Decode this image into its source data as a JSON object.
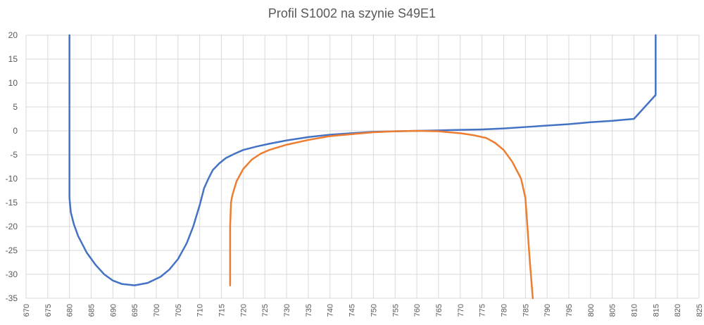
{
  "chart_data": {
    "type": "line",
    "title": "Profil S1002 na szynie S49E1",
    "xlabel": "",
    "ylabel": "",
    "xlim": [
      670,
      825
    ],
    "ylim": [
      -35,
      20
    ],
    "x_ticks": [
      670,
      675,
      680,
      685,
      690,
      695,
      700,
      705,
      710,
      715,
      720,
      725,
      730,
      735,
      740,
      745,
      750,
      755,
      760,
      765,
      770,
      775,
      780,
      785,
      790,
      795,
      800,
      805,
      810,
      815,
      820,
      825
    ],
    "y_ticks": [
      20,
      15,
      10,
      5,
      0,
      -5,
      -10,
      -15,
      -20,
      -25,
      -30,
      -35
    ],
    "grid": true,
    "legend": "none",
    "series": [
      {
        "color": "#4472C4",
        "points": [
          [
            680,
            20
          ],
          [
            680,
            5
          ],
          [
            680,
            -5
          ],
          [
            680,
            -14
          ],
          [
            680.3,
            -17
          ],
          [
            681,
            -19.5
          ],
          [
            682,
            -22
          ],
          [
            684,
            -25.5
          ],
          [
            686,
            -28
          ],
          [
            688,
            -30
          ],
          [
            690,
            -31.3
          ],
          [
            692,
            -32
          ],
          [
            695,
            -32.3
          ],
          [
            698,
            -31.8
          ],
          [
            701,
            -30.5
          ],
          [
            703,
            -29
          ],
          [
            705,
            -26.8
          ],
          [
            707,
            -23.5
          ],
          [
            708.5,
            -20
          ],
          [
            710,
            -15.5
          ],
          [
            711,
            -12
          ],
          [
            712,
            -10
          ],
          [
            713,
            -8.2
          ],
          [
            714.5,
            -6.8
          ],
          [
            716,
            -5.7
          ],
          [
            718,
            -4.8
          ],
          [
            720,
            -4
          ],
          [
            723,
            -3.3
          ],
          [
            726,
            -2.7
          ],
          [
            730,
            -2
          ],
          [
            735,
            -1.3
          ],
          [
            740,
            -0.8
          ],
          [
            745,
            -0.5
          ],
          [
            750,
            -0.2
          ],
          [
            755,
            -0.1
          ],
          [
            760,
            0
          ],
          [
            765,
            0.1
          ],
          [
            770,
            0.2
          ],
          [
            775,
            0.3
          ],
          [
            780,
            0.5
          ],
          [
            785,
            0.8
          ],
          [
            790,
            1.1
          ],
          [
            795,
            1.4
          ],
          [
            800,
            1.8
          ],
          [
            805,
            2.1
          ],
          [
            810,
            2.5
          ],
          [
            815,
            7.5
          ],
          [
            815,
            20
          ]
        ]
      },
      {
        "color": "#ED7D31",
        "points": [
          [
            717,
            -32.3
          ],
          [
            717,
            -20
          ],
          [
            717.2,
            -15
          ],
          [
            717.5,
            -13.5
          ],
          [
            718.5,
            -10.5
          ],
          [
            720,
            -8
          ],
          [
            722,
            -6
          ],
          [
            724,
            -4.8
          ],
          [
            726,
            -4
          ],
          [
            730,
            -2.9
          ],
          [
            735,
            -1.9
          ],
          [
            740,
            -1.1
          ],
          [
            745,
            -0.7
          ],
          [
            750,
            -0.3
          ],
          [
            755,
            -0.1
          ],
          [
            760,
            0
          ],
          [
            765,
            -0.1
          ],
          [
            770,
            -0.5
          ],
          [
            773,
            -0.9
          ],
          [
            776,
            -1.5
          ],
          [
            778,
            -2.5
          ],
          [
            780,
            -4
          ],
          [
            782,
            -6.5
          ],
          [
            784,
            -10
          ],
          [
            785,
            -14
          ],
          [
            786,
            -27
          ],
          [
            786.7,
            -35
          ]
        ]
      }
    ]
  }
}
